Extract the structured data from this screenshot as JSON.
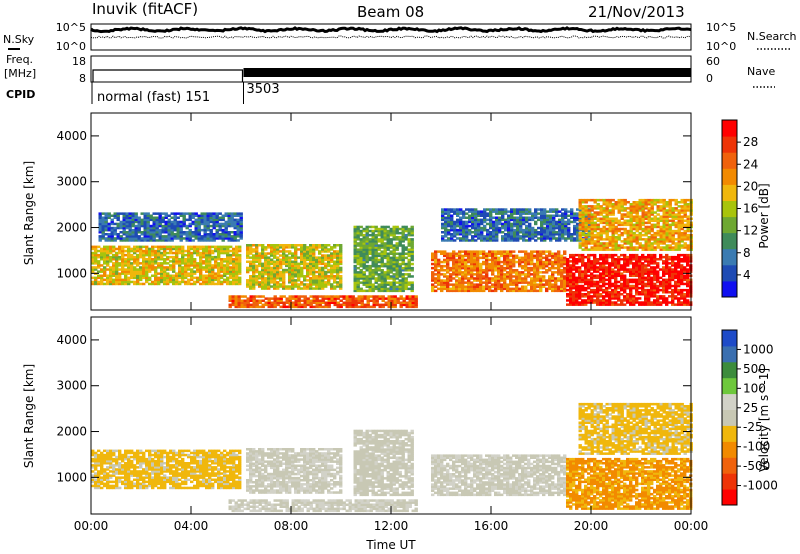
{
  "header": {
    "station": "Inuvik (fitACF)",
    "beam": "Beam 08",
    "date": "21/Nov/2013"
  },
  "nsky_panel": {
    "left_label": "N.Sky",
    "right_label": "N.Search",
    "left_ticks": [
      "10^5",
      "10^0"
    ],
    "right_ticks": [
      "10^5",
      "10^0"
    ]
  },
  "freq_panel": {
    "left_label_1": "Freq.",
    "left_label_2": "[MHz]",
    "right_label": "Nave",
    "left_ticks": [
      "18",
      "8"
    ],
    "right_ticks": [
      "60",
      "0"
    ]
  },
  "cpid": {
    "label": "CPID",
    "segments": [
      {
        "name": "normal (fast) 151",
        "start_hour": 0,
        "end_hour": 6.1
      },
      {
        "name": "3503",
        "start_hour": 6.1,
        "end_hour": 24
      }
    ]
  },
  "colors": {
    "power_scale": [
      "#1010f0",
      "#1e4bb4",
      "#3a7bb2",
      "#3f8b5a",
      "#6ea832",
      "#a8c40c",
      "#f0b70c",
      "#f28a00",
      "#f0620c",
      "#ee3407",
      "#ff0000"
    ],
    "velocity_scale": [
      "#ff0000",
      "#ee3407",
      "#f0620c",
      "#f28a00",
      "#f0b70c",
      "#c8c8b4",
      "#d2d2c8",
      "#6ec83c",
      "#3c8c3c",
      "#3a6fb0",
      "#1e4bc8"
    ]
  },
  "chart_data": [
    {
      "type": "heatmap",
      "title": "",
      "xlabel": "Time UT",
      "ylabel": "Slant Range [km]",
      "xlim_hours": [
        0,
        24
      ],
      "ylim": [
        200,
        4500
      ],
      "x_tick_labels": [
        "00:00",
        "04:00",
        "08:00",
        "12:00",
        "16:00",
        "20:00",
        "00:00"
      ],
      "y_tick_labels": [
        "1000",
        "2000",
        "3000",
        "4000"
      ],
      "colorbar": {
        "label": "Power [dB]",
        "ticks": [
          "4",
          "8",
          "12",
          "16",
          "20",
          "24",
          "28"
        ],
        "range": [
          0,
          30
        ]
      },
      "echo_regions": [
        {
          "start_hour": 0.0,
          "end_hour": 6.0,
          "range_km": [
            750,
            1600
          ],
          "mean_value": 17
        },
        {
          "start_hour": 0.3,
          "end_hour": 6.0,
          "range_km": [
            1700,
            2300
          ],
          "mean_value": 6
        },
        {
          "start_hour": 6.2,
          "end_hour": 10.0,
          "range_km": [
            650,
            1600
          ],
          "mean_value": 16
        },
        {
          "start_hour": 5.5,
          "end_hour": 13.0,
          "range_km": [
            250,
            500
          ],
          "mean_value": 24
        },
        {
          "start_hour": 10.5,
          "end_hour": 12.8,
          "range_km": [
            600,
            2000
          ],
          "mean_value": 12
        },
        {
          "start_hour": 13.6,
          "end_hour": 19.0,
          "range_km": [
            600,
            1500
          ],
          "mean_value": 22
        },
        {
          "start_hour": 14.0,
          "end_hour": 20.0,
          "range_km": [
            1700,
            2400
          ],
          "mean_value": 6
        },
        {
          "start_hour": 19.0,
          "end_hour": 24.0,
          "range_km": [
            300,
            1400
          ],
          "mean_value": 28
        },
        {
          "start_hour": 19.5,
          "end_hour": 24.0,
          "range_km": [
            1500,
            2600
          ],
          "mean_value": 19
        }
      ]
    },
    {
      "type": "heatmap",
      "title": "",
      "xlabel": "Time UT",
      "ylabel": "Slant Range [km]",
      "xlim_hours": [
        0,
        24
      ],
      "ylim": [
        200,
        4500
      ],
      "x_tick_labels": [
        "00:00",
        "04:00",
        "08:00",
        "12:00",
        "16:00",
        "20:00",
        "00:00"
      ],
      "y_tick_labels": [
        "1000",
        "2000",
        "3000",
        "4000"
      ],
      "colorbar": {
        "label": "Velocity [m s^-1]",
        "ticks": [
          "-1000",
          "-500",
          "-100",
          "-25",
          "25",
          "100",
          "500",
          "1000"
        ],
        "range": [
          -1000,
          1000
        ]
      },
      "echo_regions": [
        {
          "start_hour": 0.0,
          "end_hour": 6.0,
          "range_km": [
            750,
            1600
          ],
          "mean_value": -150
        },
        {
          "start_hour": 6.2,
          "end_hour": 10.0,
          "range_km": [
            650,
            1600
          ],
          "mean_value": 60
        },
        {
          "start_hour": 5.5,
          "end_hour": 13.0,
          "range_km": [
            250,
            500
          ],
          "mean_value": 80
        },
        {
          "start_hour": 10.5,
          "end_hour": 12.8,
          "range_km": [
            600,
            2000
          ],
          "mean_value": 30
        },
        {
          "start_hour": 13.6,
          "end_hour": 19.0,
          "range_km": [
            600,
            1500
          ],
          "mean_value": 60
        },
        {
          "start_hour": 19.0,
          "end_hour": 24.0,
          "range_km": [
            300,
            1400
          ],
          "mean_value": -300
        },
        {
          "start_hour": 19.5,
          "end_hour": 24.0,
          "range_km": [
            1500,
            2600
          ],
          "mean_value": -150
        }
      ]
    }
  ]
}
